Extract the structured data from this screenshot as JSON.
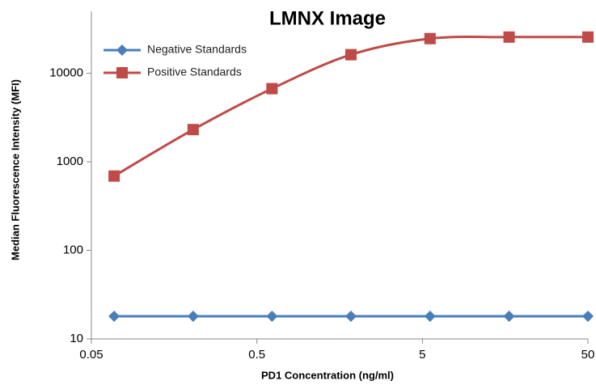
{
  "chart_data": {
    "type": "line",
    "title": "LMNX Image",
    "x_label": "PD1 Concentration (ng/ml)",
    "y_label": "Median Fluorescence Intensity (MFI)",
    "x": [
      0.0686,
      0.206,
      0.617,
      1.85,
      5.56,
      16.7,
      50
    ],
    "series": [
      {
        "name": "Negative Standards",
        "color": "#4a7ebb",
        "marker": "diamond",
        "values": [
          18,
          18,
          18,
          18,
          18,
          18,
          18
        ]
      },
      {
        "name": "Positive Standards",
        "color": "#be4b48",
        "marker": "square",
        "values": [
          690,
          2310,
          6700,
          16200,
          24600,
          25600,
          25600
        ]
      }
    ],
    "xlim": [
      0.05,
      50
    ],
    "xticks": [
      0.05,
      0.5,
      5,
      50
    ],
    "x_log": true,
    "ylim": [
      10,
      50000
    ],
    "yticks": [
      10,
      100,
      1000,
      10000
    ],
    "y_log": true,
    "smooth": true,
    "legend": "top-left"
  }
}
